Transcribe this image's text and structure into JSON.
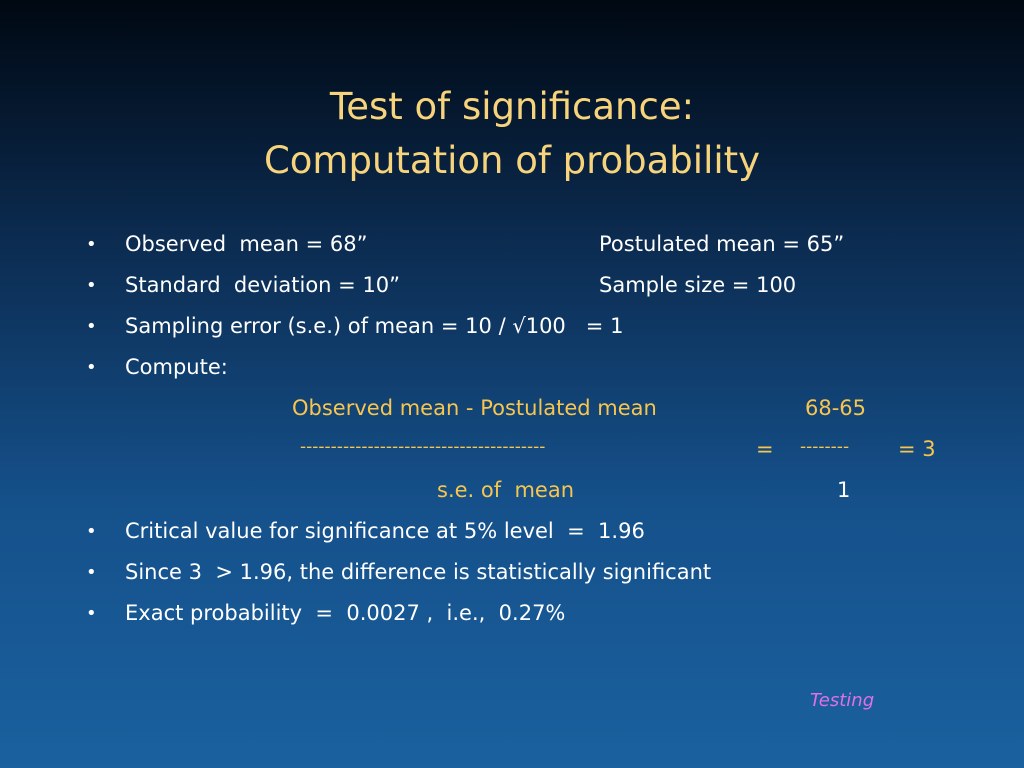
{
  "slide": {
    "title": [
      "Test of significance:",
      "Computation of probability"
    ],
    "bullets": [
      {
        "text": "Observed  mean = 68”",
        "right": "Postulated mean = 65”"
      },
      {
        "text": "Standard  deviation = 10”",
        "right": "Sample size = 100"
      },
      {
        "text": "Sampling error (s.e.) of mean = 10 / √100   = 1"
      },
      {
        "text": "Compute:"
      }
    ],
    "formula": {
      "numerator": "Observed mean - Postulated mean",
      "numerator_value": "68-65",
      "fraction_line": "----------------------------------------",
      "equals": "=",
      "value_line": "--------",
      "result": "= 3",
      "denominator": "s.e. of  mean",
      "denominator_value": "1"
    },
    "bullets_after": [
      {
        "text": "Critical value for significance at 5% level  =  1.96"
      },
      {
        "text": "Since 3  > 1.96, the difference is statistically significant"
      },
      {
        "text": "Exact probability  =  0.0027 ,  i.e.,  0.27%"
      }
    ],
    "footer": "Testing"
  }
}
